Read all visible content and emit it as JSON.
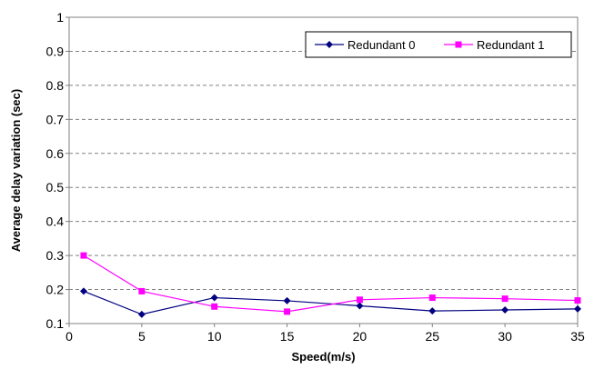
{
  "chart_data": {
    "type": "line",
    "title": "",
    "xlabel": "Speed(m/s)",
    "ylabel": "Average delay variation (sec)",
    "xlim": [
      0,
      35
    ],
    "ylim": [
      0.1,
      1
    ],
    "xticks": [
      "0",
      "5",
      "10",
      "15",
      "20",
      "25",
      "30",
      "35"
    ],
    "yticks": [
      "0.1",
      "0.2",
      "0.3",
      "0.4",
      "0.5",
      "0.6",
      "0.7",
      "0.8",
      "0.9",
      "1"
    ],
    "grid": "horizontal dashed",
    "legend_position": "top-right",
    "x": [
      1,
      5,
      10,
      15,
      20,
      25,
      30,
      35
    ],
    "series": [
      {
        "name": "Redundant 0",
        "color": "#000080",
        "marker": "diamond",
        "values": [
          0.195,
          0.127,
          0.176,
          0.167,
          0.152,
          0.137,
          0.14,
          0.143
        ]
      },
      {
        "name": "Redundant 1",
        "color": "#ff00ff",
        "marker": "square",
        "values": [
          0.3,
          0.195,
          0.15,
          0.135,
          0.17,
          0.176,
          0.173,
          0.168
        ]
      }
    ]
  }
}
